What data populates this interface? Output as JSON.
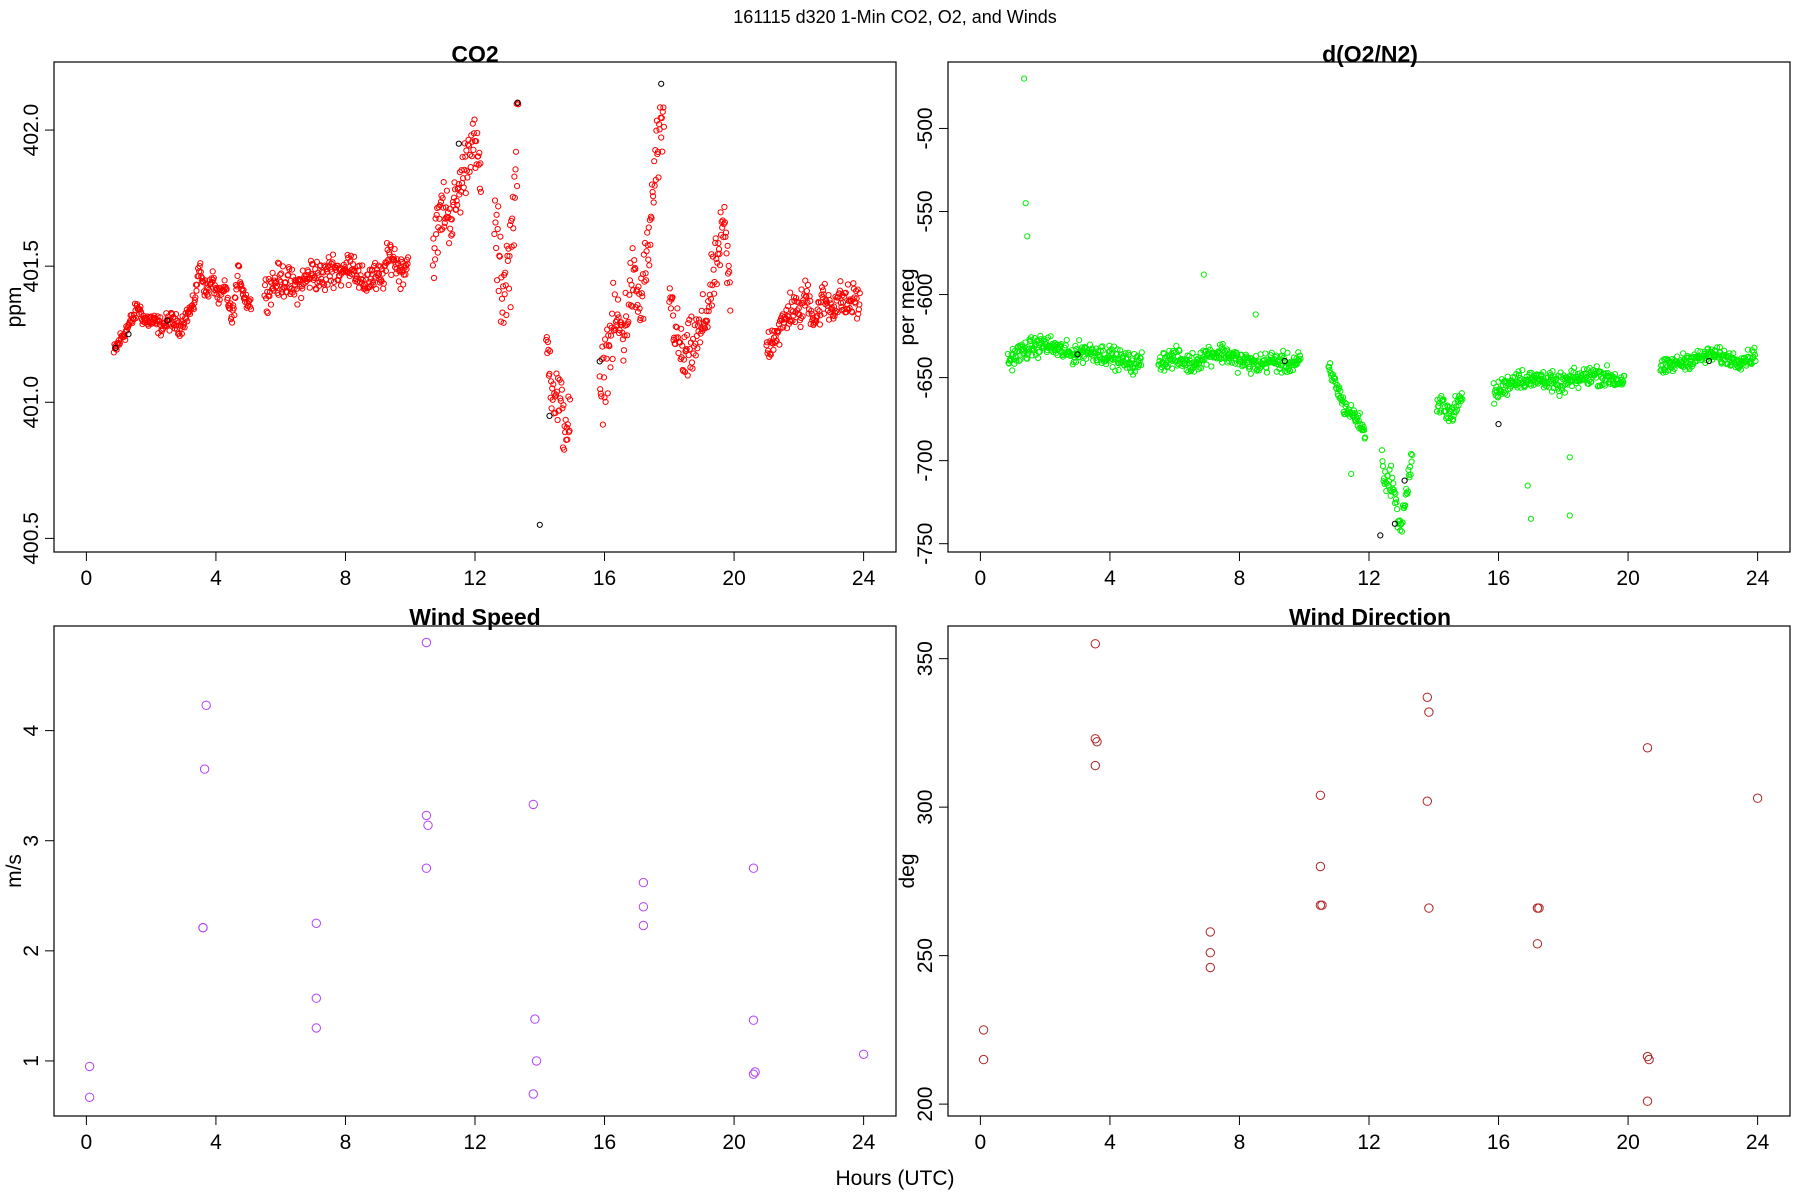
{
  "figure": {
    "suptitle": "161115   d320   1-Min CO2, O2, and Winds",
    "xlabel": "Hours (UTC)"
  },
  "chart_data": [
    {
      "id": "co2",
      "type": "scatter",
      "title": "CO2",
      "xlabel": "",
      "ylabel": "ppm",
      "xlim": [
        -1,
        25
      ],
      "ylim": [
        400.45,
        402.25
      ],
      "xticks": [
        0,
        4,
        8,
        12,
        16,
        20,
        24
      ],
      "yticks": [
        400.5,
        401.0,
        401.5,
        402.0
      ],
      "ytick_labels": [
        "400.5",
        "401.0",
        "401.5",
        "402.0"
      ],
      "marker": "circle",
      "color": "#ff0000",
      "accent_color": "#000000",
      "density": "1-minute",
      "segments": [
        {
          "x": [
            0.85,
            1.0,
            1.2,
            1.4,
            1.6,
            1.8,
            2.0,
            2.3,
            2.6,
            2.9,
            3.1,
            3.3,
            3.5,
            3.7,
            3.9,
            4.1,
            4.3,
            4.5,
            4.7,
            4.9,
            5.1
          ],
          "y": [
            401.18,
            401.22,
            401.26,
            401.3,
            401.35,
            401.3,
            401.3,
            401.28,
            401.3,
            401.28,
            401.32,
            401.35,
            401.5,
            401.4,
            401.45,
            401.38,
            401.42,
            401.3,
            401.48,
            401.38,
            401.36
          ],
          "spread": 0.05
        },
        {
          "x": [
            5.5,
            5.8,
            6.1,
            6.4,
            6.7,
            7.0,
            7.3,
            7.6,
            7.9,
            8.2,
            8.5,
            8.8,
            9.1,
            9.4,
            9.7,
            9.95
          ],
          "y": [
            401.4,
            401.44,
            401.45,
            401.42,
            401.44,
            401.48,
            401.45,
            401.5,
            401.47,
            401.52,
            401.43,
            401.46,
            401.45,
            401.55,
            401.48,
            401.52
          ],
          "spread": 0.09
        },
        {
          "x": [
            10.7,
            11.0,
            11.3,
            11.6,
            11.9,
            12.2
          ],
          "y": [
            401.55,
            401.72,
            401.68,
            401.82,
            401.98,
            401.82
          ],
          "spread": 0.16
        },
        {
          "x": [
            12.6,
            12.85,
            13.1,
            13.35
          ],
          "y": [
            401.65,
            401.4,
            401.55,
            402.05
          ],
          "spread": 0.25
        },
        {
          "x": [
            14.2,
            14.45,
            14.7,
            14.95
          ],
          "y": [
            401.2,
            401.05,
            400.95,
            400.9
          ],
          "spread": 0.2
        },
        {
          "x": [
            15.85,
            16.1,
            16.35,
            16.6,
            16.85,
            17.1,
            17.35,
            17.6,
            17.85
          ],
          "y": [
            401.0,
            401.2,
            401.3,
            401.25,
            401.45,
            401.35,
            401.55,
            401.9,
            402.0
          ],
          "spread": 0.2
        },
        {
          "x": [
            18.0,
            18.2,
            18.45,
            18.7,
            18.95,
            19.2,
            19.45,
            19.7,
            19.9
          ],
          "y": [
            401.42,
            401.25,
            401.15,
            401.2,
            401.25,
            401.35,
            401.5,
            401.65,
            401.35
          ],
          "spread": 0.16
        },
        {
          "x": [
            21.0,
            21.25,
            21.5,
            21.75,
            22.0,
            22.25,
            22.5,
            22.75,
            23.0,
            23.25,
            23.5,
            23.75,
            23.9
          ],
          "y": [
            401.2,
            401.25,
            401.28,
            401.35,
            401.32,
            401.4,
            401.3,
            401.38,
            401.35,
            401.38,
            401.36,
            401.38,
            401.35
          ],
          "spread": 0.1
        }
      ],
      "highlights": {
        "x": [
          0.9,
          1.3,
          14.0,
          14.3,
          13.32,
          17.75,
          2.5,
          11.5,
          15.85
        ],
        "y": [
          401.2,
          401.25,
          400.55,
          400.95,
          402.1,
          402.17,
          401.3,
          401.95,
          401.15
        ]
      }
    },
    {
      "id": "o2",
      "type": "scatter",
      "title": "d(O2/N2)",
      "xlabel": "",
      "ylabel": "per meg",
      "xlim": [
        -1,
        25
      ],
      "ylim": [
        -755,
        -460
      ],
      "xticks": [
        0,
        4,
        8,
        12,
        16,
        20,
        24
      ],
      "yticks": [
        -750,
        -700,
        -650,
        -600,
        -550,
        -500
      ],
      "ytick_labels": [
        "-750",
        "-700",
        "-650",
        "-600",
        "-550",
        "-500"
      ],
      "marker": "circle",
      "color": "#00ee00",
      "accent_color": "#000000",
      "density": "1-minute",
      "segments": [
        {
          "x": [
            0.85,
            1.2,
            1.6,
            2.0,
            2.4,
            2.8,
            3.2,
            3.6,
            4.0,
            4.4,
            4.8,
            5.0
          ],
          "y": [
            -640,
            -635,
            -632,
            -630,
            -633,
            -636,
            -634,
            -635,
            -637,
            -640,
            -642,
            -640
          ],
          "spread": 9
        },
        {
          "x": [
            5.5,
            6.0,
            6.5,
            7.0,
            7.5,
            8.0,
            8.5,
            9.0,
            9.5,
            9.9
          ],
          "y": [
            -640,
            -638,
            -642,
            -636,
            -635,
            -640,
            -642,
            -640,
            -642,
            -640
          ],
          "spread": 9
        },
        {
          "x": [
            10.75,
            11.0,
            11.25,
            11.5,
            11.75,
            11.9
          ],
          "y": [
            -645,
            -655,
            -668,
            -672,
            -678,
            -685
          ],
          "spread": 8
        },
        {
          "x": [
            12.4,
            12.55,
            12.7,
            12.85,
            13.0,
            13.15,
            13.35
          ],
          "y": [
            -700,
            -715,
            -710,
            -730,
            -740,
            -720,
            -695
          ],
          "spread": 12
        },
        {
          "x": [
            14.1,
            14.3,
            14.5,
            14.7,
            14.9
          ],
          "y": [
            -670,
            -665,
            -672,
            -668,
            -660
          ],
          "spread": 10
        },
        {
          "x": [
            15.85,
            16.2,
            16.6,
            17.0,
            17.4,
            17.8,
            18.2,
            18.6,
            19.0,
            19.4,
            19.8,
            19.9
          ],
          "y": [
            -660,
            -655,
            -650,
            -652,
            -650,
            -655,
            -652,
            -650,
            -648,
            -650,
            -652,
            -648
          ],
          "spread": 9
        },
        {
          "x": [
            21.0,
            21.4,
            21.8,
            22.2,
            22.6,
            23.0,
            23.4,
            23.8,
            23.95
          ],
          "y": [
            -645,
            -642,
            -640,
            -638,
            -636,
            -638,
            -640,
            -638,
            -635
          ],
          "spread": 7
        }
      ],
      "extras": {
        "x": [
          1.35,
          1.4,
          1.45,
          6.9,
          8.5,
          16.9,
          17.0,
          18.2,
          18.2,
          11.45
        ],
        "y": [
          -470,
          -545,
          -565,
          -588,
          -612,
          -715,
          -735,
          -698,
          -733,
          -708
        ]
      },
      "highlights": {
        "x": [
          3.0,
          9.4,
          12.35,
          12.8,
          13.1,
          16.0,
          22.5
        ],
        "y": [
          -636,
          -640,
          -745,
          -738,
          -712,
          -678,
          -640
        ]
      }
    },
    {
      "id": "wspd",
      "type": "scatter",
      "title": "Wind Speed",
      "xlabel": "",
      "ylabel": "m/s",
      "xlim": [
        -1,
        25
      ],
      "ylim": [
        0.5,
        4.95
      ],
      "xticks": [
        0,
        4,
        8,
        12,
        16,
        20,
        24
      ],
      "yticks": [
        1,
        2,
        3,
        4
      ],
      "ytick_labels": [
        "1",
        "2",
        "3",
        "4"
      ],
      "marker": "circle",
      "color": "#b040ff",
      "x": [
        0.1,
        0.1,
        3.6,
        3.6,
        3.65,
        3.7,
        7.1,
        7.1,
        7.1,
        10.5,
        10.5,
        10.55,
        10.5,
        13.8,
        13.85,
        13.9,
        13.8,
        17.2,
        17.2,
        17.2,
        20.6,
        20.6,
        20.65,
        20.6,
        24.0
      ],
      "y": [
        0.95,
        0.67,
        2.21,
        2.21,
        3.65,
        4.23,
        2.25,
        1.57,
        1.3,
        4.8,
        3.23,
        3.14,
        2.75,
        3.33,
        1.38,
        1.0,
        0.7,
        2.62,
        2.4,
        2.23,
        2.75,
        1.37,
        0.9,
        0.88,
        1.06
      ]
    },
    {
      "id": "wdir",
      "type": "scatter",
      "title": "Wind Direction",
      "xlabel": "",
      "ylabel": "deg",
      "xlim": [
        -1,
        25
      ],
      "ylim": [
        196,
        361
      ],
      "xticks": [
        0,
        4,
        8,
        12,
        16,
        20,
        24
      ],
      "yticks": [
        200,
        250,
        300,
        350
      ],
      "ytick_labels": [
        "200",
        "250",
        "300",
        "350"
      ],
      "marker": "circle",
      "color": "#b22222",
      "x": [
        0.1,
        0.1,
        3.55,
        3.55,
        3.6,
        3.55,
        7.1,
        7.1,
        7.1,
        10.5,
        10.5,
        10.55,
        10.5,
        13.8,
        13.85,
        13.8,
        13.85,
        17.2,
        17.25,
        17.2,
        20.6,
        20.6,
        20.65,
        20.6,
        24.0
      ],
      "y": [
        225,
        215,
        355,
        323,
        322,
        314,
        258,
        251,
        246,
        304,
        280,
        267,
        267,
        337,
        332,
        302,
        266,
        266,
        266,
        254,
        320,
        216,
        215,
        201,
        303
      ]
    }
  ]
}
